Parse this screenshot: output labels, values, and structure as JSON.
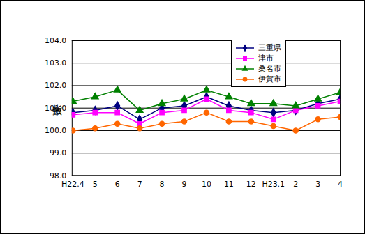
{
  "chart_data": {
    "type": "line",
    "y_label": "指数",
    "categories": [
      "H22.4",
      "5",
      "6",
      "7",
      "8",
      "9",
      "10",
      "11",
      "12",
      "H23.1",
      "2",
      "3",
      "4"
    ],
    "series": [
      {
        "name": "三重県",
        "color": "#000080",
        "marker": "diamond",
        "values": [
          100.8,
          100.9,
          101.1,
          100.5,
          101.0,
          101.1,
          101.5,
          101.1,
          100.9,
          100.8,
          100.9,
          101.2,
          101.4
        ]
      },
      {
        "name": "津市",
        "color": "#FF00FF",
        "marker": "square",
        "values": [
          100.7,
          100.8,
          100.8,
          100.3,
          100.8,
          100.9,
          101.4,
          100.9,
          100.8,
          100.5,
          100.9,
          101.1,
          101.3
        ]
      },
      {
        "name": "桑名市",
        "color": "#008000",
        "marker": "triangle",
        "values": [
          101.3,
          101.5,
          101.8,
          100.9,
          101.2,
          101.4,
          101.8,
          101.5,
          101.2,
          101.2,
          101.1,
          101.4,
          101.7
        ]
      },
      {
        "name": "伊賀市",
        "color": "#FF6600",
        "marker": "circle",
        "values": [
          100.0,
          100.1,
          100.3,
          100.1,
          100.3,
          100.4,
          100.8,
          100.4,
          100.4,
          100.2,
          100.0,
          100.5,
          100.6
        ]
      }
    ],
    "ylim": [
      98,
      104
    ],
    "yticks": [
      {
        "value": 98,
        "label": "98.0"
      },
      {
        "value": 99,
        "label": "99.0"
      },
      {
        "value": 100,
        "label": "100.0"
      },
      {
        "value": 101,
        "label": "101.0"
      },
      {
        "value": 102,
        "label": "102.0"
      },
      {
        "value": 103,
        "label": "103.0"
      },
      {
        "value": 104,
        "label": "104.0"
      }
    ],
    "grid": true,
    "legend": "upper right"
  }
}
